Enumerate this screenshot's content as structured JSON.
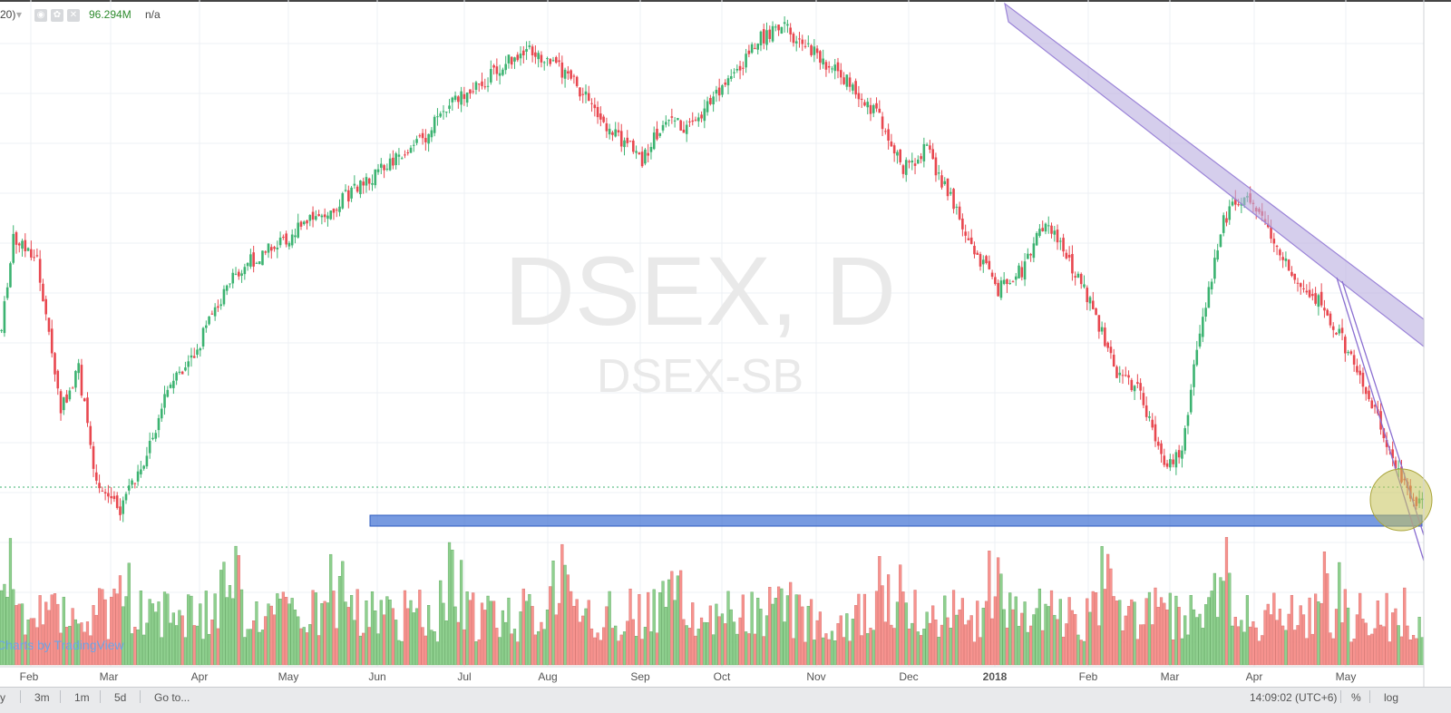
{
  "header": {
    "indicator_suffix": "20)",
    "volume_value": "96.294M",
    "na_value": "n/a"
  },
  "watermark": {
    "symbol": "DSEX, D",
    "exchange": "DSEX-SB"
  },
  "branding": {
    "text": "Charts by TradingView"
  },
  "toolbar": {
    "timeframes": [
      "y",
      "3m",
      "1m",
      "5d",
      "Go to..."
    ],
    "time": "14:09:02 (UTC+6)",
    "percent": "%",
    "log": "log"
  },
  "colors": {
    "up": "#3cb371",
    "down": "#e8474f",
    "vol_up": "#8fd08f",
    "vol_down": "#f7938f",
    "channel": "#b9aee0",
    "support": "#4a78d6",
    "circle": "#c7c25a"
  },
  "chart_data": {
    "type": "candlestick",
    "title": "DSEX, D",
    "x_labels": [
      "Feb",
      "Mar",
      "Apr",
      "May",
      "Jun",
      "Jul",
      "Aug",
      "Sep",
      "Oct",
      "Nov",
      "Dec",
      "2018",
      "Feb",
      "Mar",
      "Apr",
      "May"
    ],
    "close_path_points": [
      [
        0,
        0.62
      ],
      [
        4,
        0.44
      ],
      [
        12,
        0.48
      ],
      [
        20,
        0.78
      ],
      [
        26,
        0.7
      ],
      [
        32,
        0.92
      ],
      [
        40,
        0.98
      ],
      [
        48,
        0.88
      ],
      [
        56,
        0.74
      ],
      [
        64,
        0.68
      ],
      [
        72,
        0.58
      ],
      [
        80,
        0.5
      ],
      [
        90,
        0.46
      ],
      [
        100,
        0.42
      ],
      [
        110,
        0.38
      ],
      [
        120,
        0.34
      ],
      [
        132,
        0.28
      ],
      [
        142,
        0.24
      ],
      [
        152,
        0.16
      ],
      [
        160,
        0.14
      ],
      [
        168,
        0.1
      ],
      [
        176,
        0.06
      ],
      [
        184,
        0.08
      ],
      [
        192,
        0.12
      ],
      [
        200,
        0.18
      ],
      [
        208,
        0.24
      ],
      [
        216,
        0.28
      ],
      [
        224,
        0.2
      ],
      [
        232,
        0.22
      ],
      [
        240,
        0.16
      ],
      [
        248,
        0.1
      ],
      [
        256,
        0.04
      ],
      [
        264,
        0.02
      ],
      [
        272,
        0.06
      ],
      [
        280,
        0.1
      ],
      [
        288,
        0.14
      ],
      [
        296,
        0.2
      ],
      [
        304,
        0.3
      ],
      [
        312,
        0.26
      ],
      [
        320,
        0.36
      ],
      [
        328,
        0.46
      ],
      [
        336,
        0.54
      ],
      [
        344,
        0.5
      ],
      [
        352,
        0.4
      ],
      [
        360,
        0.48
      ],
      [
        368,
        0.58
      ],
      [
        376,
        0.7
      ],
      [
        384,
        0.74
      ],
      [
        392,
        0.9
      ],
      [
        398,
        0.86
      ],
      [
        404,
        0.62
      ],
      [
        412,
        0.4
      ],
      [
        420,
        0.34
      ],
      [
        428,
        0.44
      ],
      [
        436,
        0.52
      ],
      [
        444,
        0.56
      ],
      [
        452,
        0.64
      ],
      [
        460,
        0.74
      ],
      [
        468,
        0.86
      ],
      [
        476,
        0.96
      ],
      [
        480,
        0.97
      ]
    ],
    "volume_pattern": "alternating",
    "support_zone": {
      "label": "",
      "value_low": 0.96,
      "value_high": 0.98
    },
    "log_scale": false,
    "grid": true
  }
}
